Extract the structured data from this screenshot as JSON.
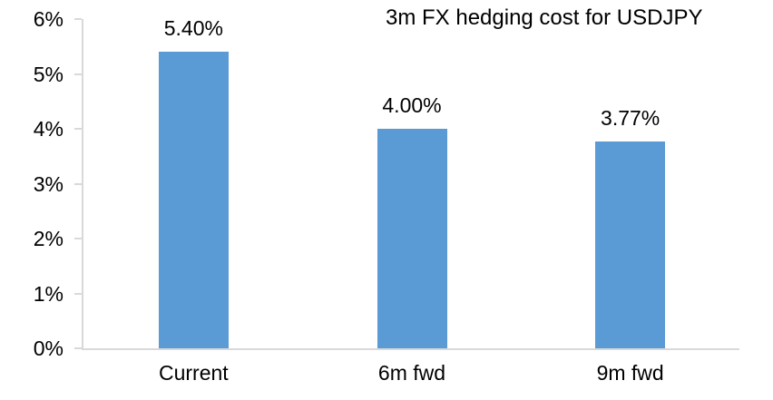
{
  "chart_data": {
    "type": "bar",
    "title": "3m FX hedging cost for USDJPY",
    "categories": [
      "Current",
      "6m fwd",
      "9m fwd"
    ],
    "values": [
      5.4,
      4.0,
      3.77
    ],
    "data_labels": [
      "5.40%",
      "4.00%",
      "3.77%"
    ],
    "xlabel": "",
    "ylabel": "",
    "ylim": [
      0,
      6
    ],
    "ytick_step": 1,
    "ytick_labels": [
      "0%",
      "1%",
      "2%",
      "3%",
      "4%",
      "5%",
      "6%"
    ],
    "grid": false,
    "legend": false,
    "bar_color": "#5B9BD5",
    "axis_color": "#D9D9D9",
    "text_color": "#000000"
  }
}
